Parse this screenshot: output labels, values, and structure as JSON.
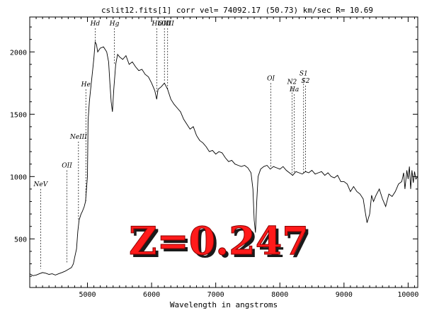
{
  "chart_data": {
    "type": "line",
    "title": "cslit12.fits[1]  corr vel= 74092.17 (50.73) km/sec R= 10.69",
    "xlabel": "Wavelength in angstroms",
    "ylabel": "",
    "xlim": [
      4100,
      10150
    ],
    "ylim": [
      110,
      2280
    ],
    "x_ticks": [
      5000,
      6000,
      7000,
      8000,
      9000,
      10000
    ],
    "x_tick_labels": [
      "5000",
      "6000",
      "7000",
      "8000",
      "9000",
      "10000"
    ],
    "y_ticks": [
      500,
      1000,
      1500,
      2000
    ],
    "y_tick_labels": [
      "500",
      "1000",
      "1500",
      "2000"
    ],
    "grid": false,
    "series": [
      {
        "values": [
          [
            4100,
            220
          ],
          [
            4150,
            205
          ],
          [
            4200,
            210
          ],
          [
            4250,
            220
          ],
          [
            4300,
            230
          ],
          [
            4350,
            225
          ],
          [
            4400,
            215
          ],
          [
            4450,
            220
          ],
          [
            4500,
            210
          ],
          [
            4550,
            220
          ],
          [
            4600,
            230
          ],
          [
            4650,
            240
          ],
          [
            4700,
            255
          ],
          [
            4750,
            270
          ],
          [
            4780,
            300
          ],
          [
            4800,
            350
          ],
          [
            4830,
            420
          ],
          [
            4850,
            560
          ],
          [
            4870,
            650
          ],
          [
            4900,
            700
          ],
          [
            4920,
            720
          ],
          [
            4950,
            760
          ],
          [
            4970,
            800
          ],
          [
            5000,
            1000
          ],
          [
            5010,
            1450
          ],
          [
            5030,
            1600
          ],
          [
            5050,
            1700
          ],
          [
            5080,
            1850
          ],
          [
            5100,
            1950
          ],
          [
            5120,
            2080
          ],
          [
            5140,
            2060
          ],
          [
            5160,
            2000
          ],
          [
            5200,
            2030
          ],
          [
            5250,
            2040
          ],
          [
            5300,
            2000
          ],
          [
            5330,
            1920
          ],
          [
            5350,
            1750
          ],
          [
            5370,
            1600
          ],
          [
            5390,
            1520
          ],
          [
            5410,
            1700
          ],
          [
            5440,
            1900
          ],
          [
            5470,
            1980
          ],
          [
            5500,
            1960
          ],
          [
            5550,
            1940
          ],
          [
            5600,
            1970
          ],
          [
            5650,
            1900
          ],
          [
            5700,
            1920
          ],
          [
            5750,
            1880
          ],
          [
            5800,
            1850
          ],
          [
            5850,
            1860
          ],
          [
            5900,
            1820
          ],
          [
            5950,
            1800
          ],
          [
            6000,
            1750
          ],
          [
            6050,
            1690
          ],
          [
            6080,
            1620
          ],
          [
            6100,
            1700
          ],
          [
            6150,
            1720
          ],
          [
            6200,
            1750
          ],
          [
            6250,
            1700
          ],
          [
            6300,
            1620
          ],
          [
            6350,
            1580
          ],
          [
            6400,
            1550
          ],
          [
            6450,
            1520
          ],
          [
            6500,
            1460
          ],
          [
            6550,
            1420
          ],
          [
            6600,
            1380
          ],
          [
            6650,
            1400
          ],
          [
            6700,
            1330
          ],
          [
            6750,
            1290
          ],
          [
            6800,
            1270
          ],
          [
            6850,
            1240
          ],
          [
            6900,
            1200
          ],
          [
            6950,
            1210
          ],
          [
            7000,
            1180
          ],
          [
            7050,
            1200
          ],
          [
            7100,
            1190
          ],
          [
            7150,
            1150
          ],
          [
            7200,
            1120
          ],
          [
            7250,
            1130
          ],
          [
            7300,
            1100
          ],
          [
            7350,
            1090
          ],
          [
            7400,
            1080
          ],
          [
            7450,
            1090
          ],
          [
            7500,
            1070
          ],
          [
            7550,
            1030
          ],
          [
            7580,
            900
          ],
          [
            7600,
            650
          ],
          [
            7620,
            550
          ],
          [
            7640,
            800
          ],
          [
            7660,
            1000
          ],
          [
            7700,
            1060
          ],
          [
            7750,
            1080
          ],
          [
            7800,
            1090
          ],
          [
            7850,
            1060
          ],
          [
            7900,
            1080
          ],
          [
            7950,
            1070
          ],
          [
            8000,
            1060
          ],
          [
            8050,
            1080
          ],
          [
            8100,
            1050
          ],
          [
            8150,
            1030
          ],
          [
            8200,
            1010
          ],
          [
            8250,
            1040
          ],
          [
            8300,
            1030
          ],
          [
            8350,
            1020
          ],
          [
            8400,
            1040
          ],
          [
            8450,
            1030
          ],
          [
            8500,
            1050
          ],
          [
            8550,
            1020
          ],
          [
            8600,
            1030
          ],
          [
            8650,
            1040
          ],
          [
            8700,
            1010
          ],
          [
            8750,
            1030
          ],
          [
            8800,
            1000
          ],
          [
            8850,
            990
          ],
          [
            8900,
            1010
          ],
          [
            8950,
            960
          ],
          [
            9000,
            960
          ],
          [
            9050,
            940
          ],
          [
            9100,
            880
          ],
          [
            9150,
            920
          ],
          [
            9200,
            880
          ],
          [
            9250,
            860
          ],
          [
            9300,
            820
          ],
          [
            9330,
            720
          ],
          [
            9360,
            630
          ],
          [
            9400,
            700
          ],
          [
            9430,
            850
          ],
          [
            9460,
            800
          ],
          [
            9500,
            850
          ],
          [
            9550,
            900
          ],
          [
            9600,
            820
          ],
          [
            9650,
            760
          ],
          [
            9700,
            860
          ],
          [
            9750,
            840
          ],
          [
            9800,
            880
          ],
          [
            9850,
            940
          ],
          [
            9900,
            960
          ],
          [
            9930,
            1030
          ],
          [
            9950,
            900
          ],
          [
            9980,
            1050
          ],
          [
            10000,
            980
          ],
          [
            10020,
            1080
          ],
          [
            10040,
            900
          ],
          [
            10060,
            1050
          ],
          [
            10080,
            950
          ],
          [
            10100,
            1040
          ],
          [
            10120,
            980
          ],
          [
            10150,
            1000
          ]
        ]
      }
    ],
    "lines": [
      {
        "label": "NeV",
        "x": 4270,
        "y_top": 900,
        "y_bottom": 260
      },
      {
        "label": "OII",
        "x": 4680,
        "y_top": 1050,
        "y_bottom": 300
      },
      {
        "label": "NeIII",
        "x": 4860,
        "y_top": 1280,
        "y_bottom": 650
      },
      {
        "label": "He",
        "x": 4975,
        "y_top": 1700,
        "y_bottom": 800
      },
      {
        "label": "Hd",
        "x": 5120,
        "y_top": 2190,
        "y_bottom": 2080
      },
      {
        "label": "Hg",
        "x": 5420,
        "y_top": 2190,
        "y_bottom": 1900
      },
      {
        "label": "Hb",
        "x": 6080,
        "y_top": 2190,
        "y_bottom": 1680
      },
      {
        "label": "OIII",
        "x": 6200,
        "y_top": 2190,
        "y_bottom": 1760
      },
      {
        "label": "OIII",
        "x": 6250,
        "y_top": 2190,
        "y_bottom": 1700
      },
      {
        "label": "OI",
        "x": 7860,
        "y_top": 1750,
        "y_bottom": 1080
      },
      {
        "label": "N2",
        "x": 8190,
        "y_top": 1720,
        "y_bottom": 1010
      },
      {
        "label": "Ha",
        "x": 8225,
        "y_top": 1660,
        "y_bottom": 1030
      },
      {
        "label": "S1",
        "x": 8370,
        "y_top": 1790,
        "y_bottom": 1030
      },
      {
        "label": "S2",
        "x": 8400,
        "y_top": 1730,
        "y_bottom": 1030
      }
    ],
    "annotation": "Z=0.247"
  },
  "colors": {
    "annotation_fill": "#ff1a1a",
    "annotation_shadow": "#1a1a1a",
    "line": "#000000"
  }
}
